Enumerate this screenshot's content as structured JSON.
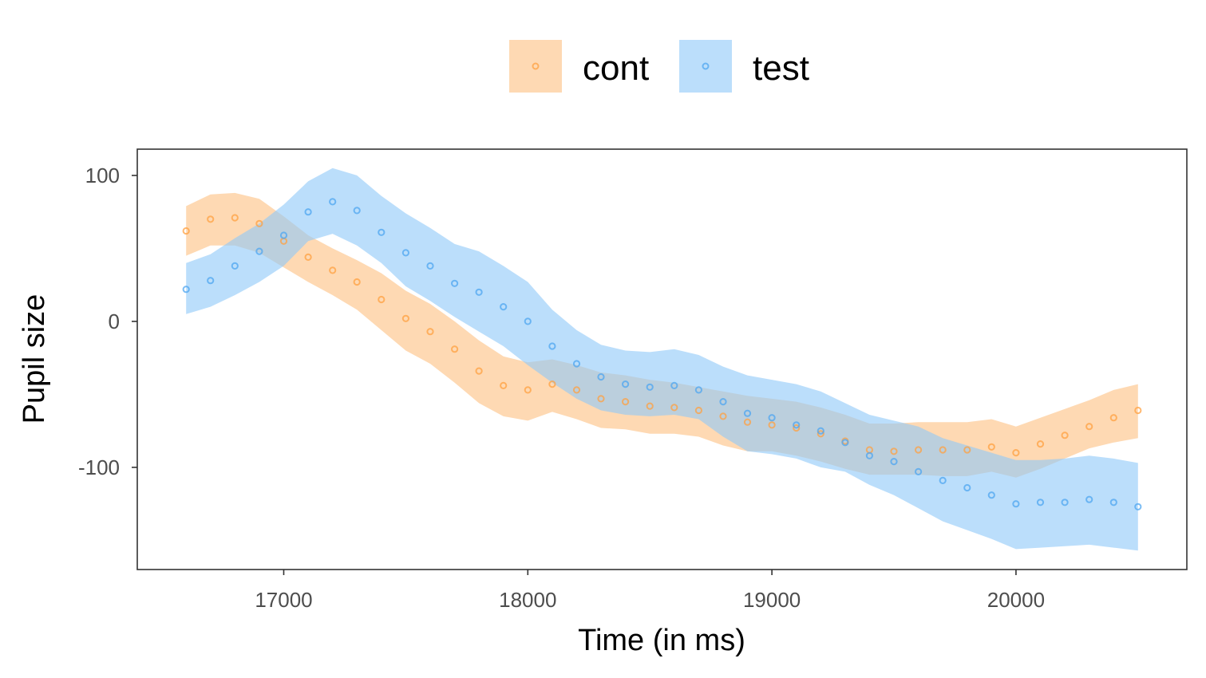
{
  "chart_data": {
    "type": "scatter",
    "xlabel": "Time (in ms)",
    "ylabel": "Pupil size",
    "xlim": [
      16400,
      20700
    ],
    "ylim": [
      -170,
      118
    ],
    "x_ticks": [
      17000,
      18000,
      19000,
      20000
    ],
    "x_tick_labels": [
      "17000",
      "18000",
      "19000",
      "20000"
    ],
    "y_ticks": [
      100,
      0,
      -100
    ],
    "y_tick_labels": [
      "100",
      "0",
      "-100"
    ],
    "grid": false,
    "legend_position": "top",
    "x": [
      16600,
      16700,
      16800,
      16900,
      17000,
      17100,
      17200,
      17300,
      17400,
      17500,
      17600,
      17700,
      17800,
      17900,
      18000,
      18100,
      18200,
      18300,
      18400,
      18500,
      18600,
      18700,
      18800,
      18900,
      19000,
      19100,
      19200,
      19300,
      19400,
      19500,
      19600,
      19700,
      19800,
      19900,
      20000,
      20100,
      20200,
      20300,
      20400,
      20500
    ],
    "series": [
      {
        "name": "cont",
        "color": "#FFA040",
        "band_color": "#FDBF80",
        "values": [
          62,
          70,
          71,
          67,
          55,
          44,
          35,
          27,
          15,
          2,
          -7,
          -19,
          -34,
          -44,
          -47,
          -43,
          -47,
          -53,
          -55,
          -58,
          -59,
          -61,
          -65,
          -69,
          -71,
          -73,
          -77,
          -82,
          -88,
          -89,
          -88,
          -88,
          -88,
          -86,
          -90,
          -84,
          -78,
          -72,
          -66,
          -61
        ],
        "lower": [
          45,
          52,
          52,
          47,
          37,
          27,
          18,
          8,
          -6,
          -20,
          -29,
          -42,
          -56,
          -65,
          -68,
          -62,
          -67,
          -73,
          -74,
          -77,
          -77,
          -79,
          -85,
          -89,
          -89,
          -92,
          -96,
          -101,
          -105,
          -105,
          -105,
          -106,
          -106,
          -103,
          -107,
          -101,
          -94,
          -87,
          -83,
          -80
        ],
        "upper": [
          79,
          87,
          88,
          84,
          72,
          59,
          50,
          42,
          33,
          21,
          12,
          0,
          -13,
          -24,
          -28,
          -26,
          -30,
          -35,
          -37,
          -40,
          -42,
          -45,
          -48,
          -51,
          -53,
          -55,
          -59,
          -64,
          -70,
          -70,
          -69,
          -69,
          -69,
          -67,
          -72,
          -66,
          -60,
          -54,
          -47,
          -43
        ]
      },
      {
        "name": "test",
        "color": "#4DA6F0",
        "band_color": "#8EC8F8",
        "values": [
          22,
          28,
          38,
          48,
          59,
          75,
          82,
          76,
          61,
          47,
          38,
          26,
          20,
          10,
          0,
          -17,
          -29,
          -38,
          -43,
          -45,
          -44,
          -47,
          -55,
          -63,
          -66,
          -71,
          -75,
          -83,
          -92,
          -96,
          -103,
          -109,
          -114,
          -119,
          -125,
          -124,
          -124,
          -122,
          -124,
          -127
        ],
        "lower": [
          5,
          10,
          18,
          27,
          38,
          55,
          60,
          52,
          40,
          24,
          14,
          3,
          -7,
          -17,
          -30,
          -42,
          -53,
          -61,
          -64,
          -65,
          -64,
          -67,
          -79,
          -89,
          -91,
          -94,
          -100,
          -103,
          -112,
          -119,
          -128,
          -137,
          -143,
          -149,
          -156,
          -155,
          -154,
          -153,
          -155,
          -157
        ],
        "upper": [
          40,
          46,
          57,
          67,
          80,
          96,
          105,
          100,
          86,
          74,
          64,
          53,
          48,
          38,
          27,
          8,
          -6,
          -16,
          -20,
          -21,
          -19,
          -23,
          -31,
          -37,
          -40,
          -43,
          -48,
          -56,
          -64,
          -68,
          -72,
          -80,
          -85,
          -90,
          -95,
          -95,
          -94,
          -92,
          -94,
          -97
        ]
      }
    ]
  }
}
